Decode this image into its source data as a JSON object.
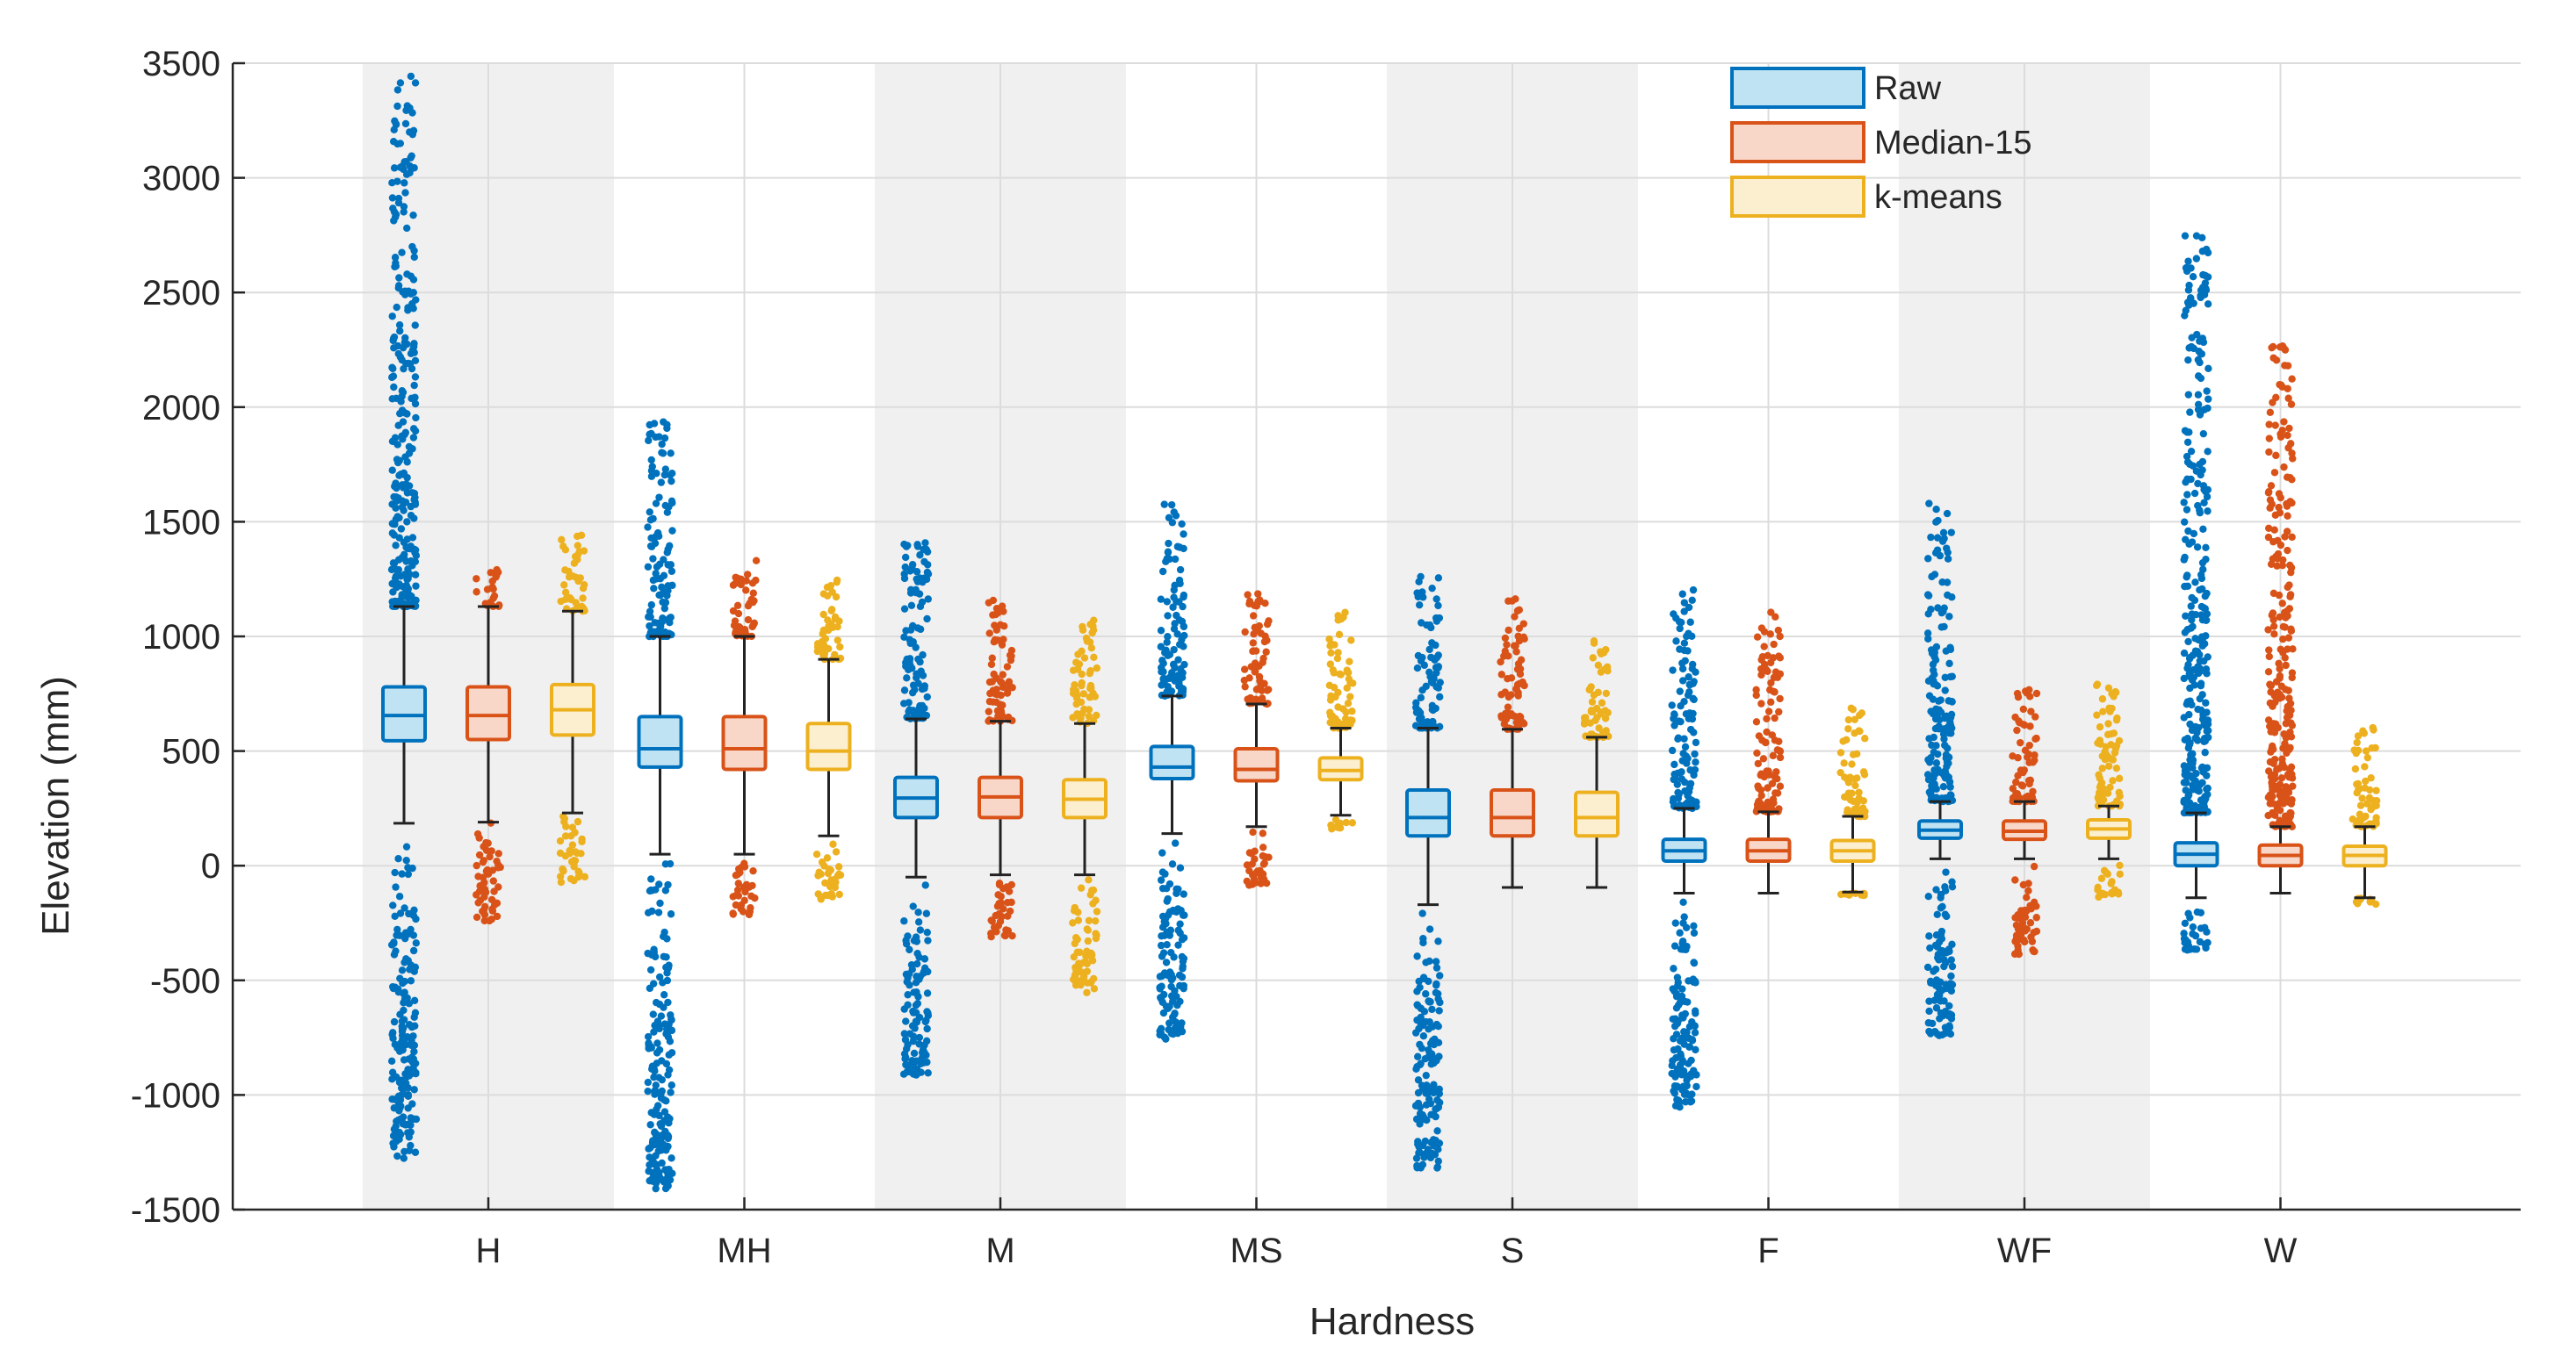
{
  "chart_data": {
    "type": "box",
    "title": "",
    "xlabel": "Hardness",
    "ylabel": "Elevation (mm)",
    "ylim": [
      -1500,
      3500
    ],
    "yticks": [
      -1500,
      -1000,
      -500,
      0,
      500,
      1000,
      1500,
      2000,
      2500,
      3000,
      3500
    ],
    "grid": true,
    "legend_position": "top-right",
    "categories": [
      "H",
      "MH",
      "M",
      "MS",
      "S",
      "F",
      "WF",
      "W"
    ],
    "shaded_categories": [
      "H",
      "M",
      "S",
      "WF"
    ],
    "series": [
      {
        "name": "Raw",
        "color": "#0072BD",
        "fill": "#BFE3F2",
        "boxes": [
          {
            "q1": 545,
            "median": 655,
            "q3": 780,
            "wlo": 185,
            "whi": 1130,
            "outliers": [
              [
                -1280,
                185
              ],
              [
                1130,
                3460
              ]
            ]
          },
          {
            "q1": 430,
            "median": 510,
            "q3": 650,
            "wlo": 50,
            "whi": 1000,
            "outliers": [
              [
                -1420,
                50
              ],
              [
                1000,
                1950
              ]
            ]
          },
          {
            "q1": 210,
            "median": 295,
            "q3": 385,
            "wlo": -50,
            "whi": 640,
            "outliers": [
              [
                -920,
                -50
              ],
              [
                640,
                1440
              ]
            ]
          },
          {
            "q1": 380,
            "median": 430,
            "q3": 520,
            "wlo": 140,
            "whi": 740,
            "outliers": [
              [
                -760,
                140
              ],
              [
                740,
                1580
              ]
            ]
          },
          {
            "q1": 130,
            "median": 210,
            "q3": 330,
            "wlo": -170,
            "whi": 600,
            "outliers": [
              [
                -1320,
                -170
              ],
              [
                600,
                1270
              ]
            ]
          },
          {
            "q1": 20,
            "median": 65,
            "q3": 115,
            "wlo": -120,
            "whi": 250,
            "outliers": [
              [
                -1060,
                -120
              ],
              [
                250,
                1230
              ]
            ]
          },
          {
            "q1": 120,
            "median": 155,
            "q3": 195,
            "wlo": 30,
            "whi": 280,
            "outliers": [
              [
                -750,
                30
              ],
              [
                280,
                1590
              ]
            ]
          },
          {
            "q1": 0,
            "median": 50,
            "q3": 100,
            "wlo": -140,
            "whi": 230,
            "outliers": [
              [
                -370,
                -140
              ],
              [
                230,
                2790
              ]
            ]
          }
        ]
      },
      {
        "name": "Median-15",
        "color": "#D95319",
        "fill": "#F8D7C8",
        "boxes": [
          {
            "q1": 550,
            "median": 655,
            "q3": 780,
            "wlo": 190,
            "whi": 1130,
            "outliers": [
              [
                -265,
                190
              ],
              [
                1130,
                1300
              ]
            ]
          },
          {
            "q1": 420,
            "median": 510,
            "q3": 650,
            "wlo": 50,
            "whi": 1000,
            "outliers": [
              [
                -215,
                50
              ],
              [
                1000,
                1350
              ]
            ]
          },
          {
            "q1": 210,
            "median": 300,
            "q3": 385,
            "wlo": -40,
            "whi": 630,
            "outliers": [
              [
                -320,
                -40
              ],
              [
                630,
                1180
              ]
            ]
          },
          {
            "q1": 370,
            "median": 420,
            "q3": 510,
            "wlo": 170,
            "whi": 705,
            "outliers": [
              [
                -90,
                170
              ],
              [
                705,
                1190
              ]
            ]
          },
          {
            "q1": 130,
            "median": 210,
            "q3": 330,
            "wlo": -95,
            "whi": 595,
            "outliers": [
              [
                595,
                1170
              ]
            ]
          },
          {
            "q1": 20,
            "median": 65,
            "q3": 115,
            "wlo": -120,
            "whi": 235,
            "outliers": [
              [
                235,
                1110
              ]
            ]
          },
          {
            "q1": 115,
            "median": 150,
            "q3": 195,
            "wlo": 30,
            "whi": 280,
            "outliers": [
              [
                -390,
                30
              ],
              [
                280,
                770
              ]
            ]
          },
          {
            "q1": 0,
            "median": 45,
            "q3": 90,
            "wlo": -120,
            "whi": 170,
            "outliers": [
              [
                170,
                2300
              ]
            ]
          }
        ]
      },
      {
        "name": "k-means",
        "color": "#EDB120",
        "fill": "#FBEFCF",
        "boxes": [
          {
            "q1": 570,
            "median": 680,
            "q3": 790,
            "wlo": 230,
            "whi": 1110,
            "outliers": [
              [
                -80,
                230
              ],
              [
                1110,
                1450
              ]
            ]
          },
          {
            "q1": 420,
            "median": 500,
            "q3": 620,
            "wlo": 130,
            "whi": 900,
            "outliers": [
              [
                -150,
                130
              ],
              [
                900,
                1260
              ]
            ]
          },
          {
            "q1": 210,
            "median": 290,
            "q3": 375,
            "wlo": -40,
            "whi": 620,
            "outliers": [
              [
                -560,
                -40
              ],
              [
                620,
                1080
              ]
            ]
          },
          {
            "q1": 375,
            "median": 415,
            "q3": 470,
            "wlo": 220,
            "whi": 600,
            "outliers": [
              [
                160,
                220
              ],
              [
                600,
                1110
              ]
            ]
          },
          {
            "q1": 130,
            "median": 210,
            "q3": 320,
            "wlo": -95,
            "whi": 560,
            "outliers": [
              [
                560,
                1010
              ]
            ]
          },
          {
            "q1": 20,
            "median": 65,
            "q3": 110,
            "wlo": -115,
            "whi": 215,
            "outliers": [
              [
                -130,
                -115
              ],
              [
                215,
                690
              ]
            ]
          },
          {
            "q1": 120,
            "median": 160,
            "q3": 200,
            "wlo": 30,
            "whi": 260,
            "outliers": [
              [
                -140,
                30
              ],
              [
                260,
                810
              ]
            ]
          },
          {
            "q1": 0,
            "median": 45,
            "q3": 85,
            "wlo": -140,
            "whi": 170,
            "outliers": [
              [
                -170,
                -140
              ],
              [
                170,
                610
              ]
            ]
          }
        ]
      }
    ]
  }
}
